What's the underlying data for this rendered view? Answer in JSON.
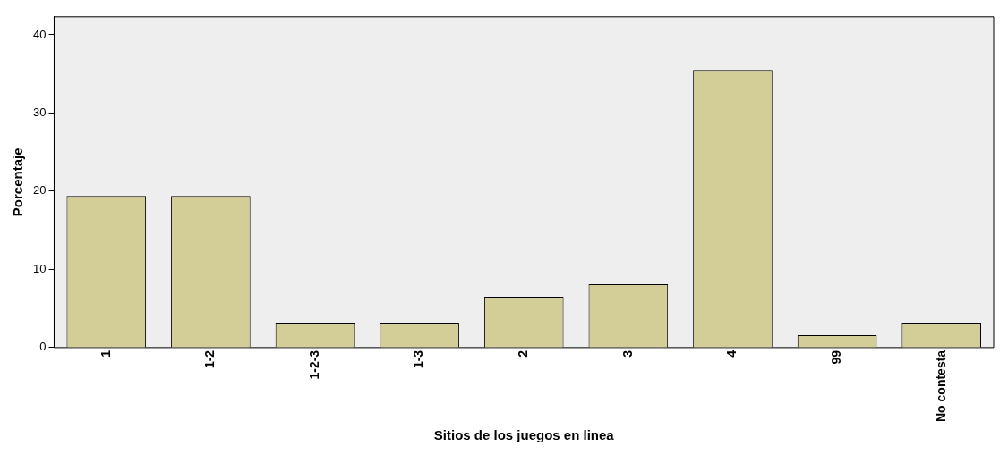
{
  "chart_data": {
    "type": "bar",
    "xlabel": "Sitios de los juegos en linea",
    "ylabel": "Porcentaje",
    "categories": [
      "1",
      "1-2",
      "1-2-3",
      "1-3",
      "2",
      "3",
      "4",
      "99",
      "No contesta"
    ],
    "values": [
      19.4,
      19.4,
      3.2,
      3.2,
      6.5,
      8.1,
      35.5,
      1.6,
      3.2
    ],
    "color": "#d3cd98",
    "ylim": [
      0,
      42.3
    ],
    "yticks": [
      0,
      10,
      20,
      30,
      40
    ],
    "grid": false,
    "legend": false
  }
}
